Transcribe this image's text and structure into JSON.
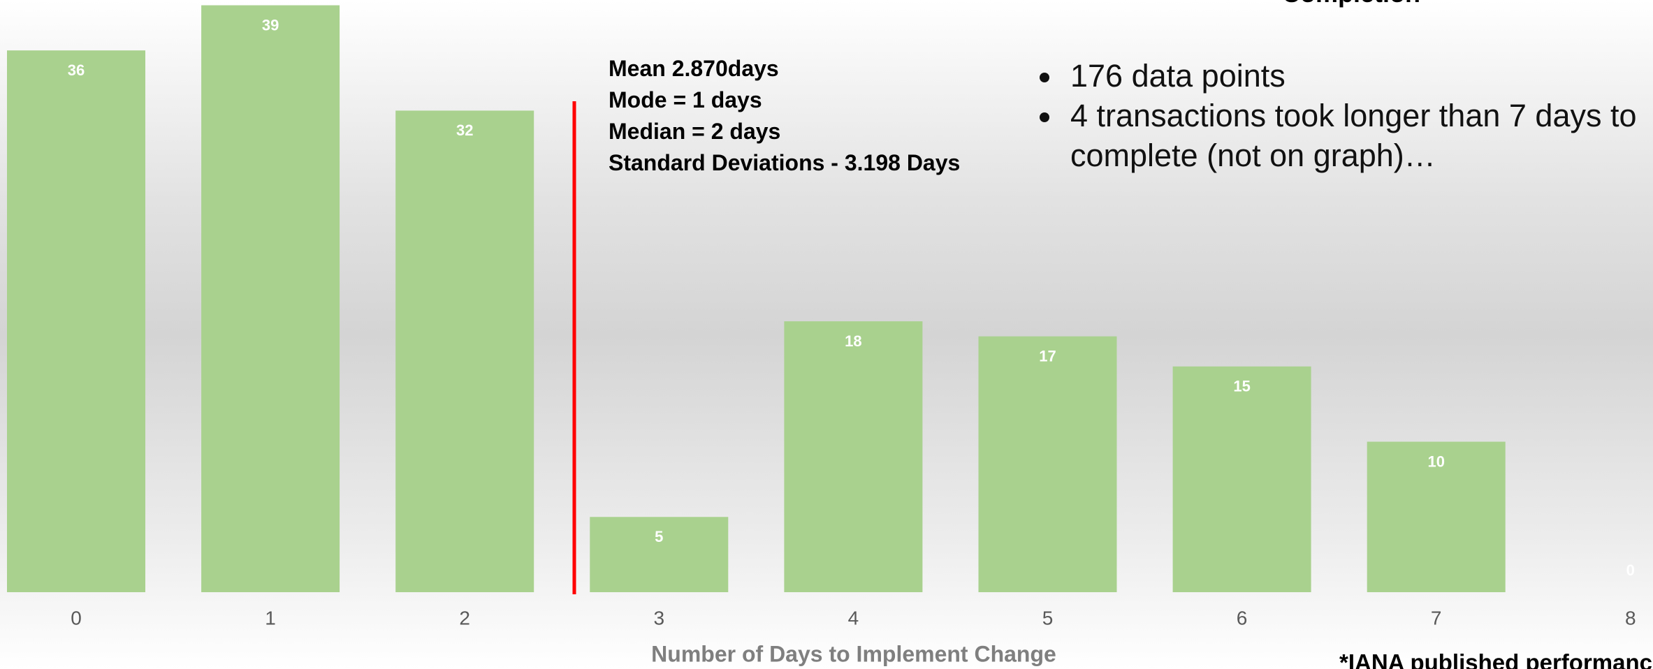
{
  "chart_data": {
    "type": "bar",
    "title": "Completion",
    "xlabel": "Number of Days to Implement Change",
    "categories": [
      "0",
      "1",
      "2",
      "3",
      "4",
      "5",
      "6",
      "7",
      "8"
    ],
    "values": [
      36,
      39,
      32,
      5,
      18,
      17,
      15,
      10,
      0
    ],
    "color": "#a9d18e",
    "annotations": [
      "Mean 2.870days",
      "Mode = 1 days",
      "Median = 2 days",
      "Standard Deviations - 3.198 Days"
    ],
    "bullets": [
      "176 data points",
      "4 transactions took longer than 7 days to complete (not on graph)…"
    ],
    "footnote": "*IANA published performanc"
  }
}
